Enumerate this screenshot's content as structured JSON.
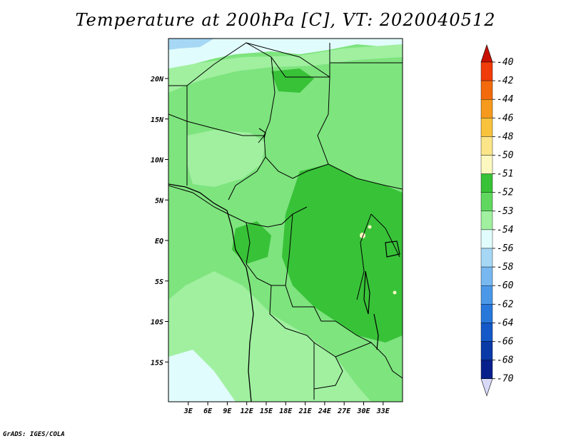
{
  "title": "Temperature at 200hPa [C], VT: 2020040512",
  "credit": "GrADS: IGES/COLA",
  "map": {
    "lat_ticks": [
      {
        "label": "20N",
        "lat": 20
      },
      {
        "label": "15N",
        "lat": 15
      },
      {
        "label": "10N",
        "lat": 10
      },
      {
        "label": "5N",
        "lat": 5
      },
      {
        "label": "EQ",
        "lat": 0
      },
      {
        "label": "5S",
        "lat": -5
      },
      {
        "label": "10S",
        "lat": -10
      },
      {
        "label": "15S",
        "lat": -15
      }
    ],
    "lon_ticks": [
      {
        "label": "3E",
        "lon": 3
      },
      {
        "label": "6E",
        "lon": 6
      },
      {
        "label": "9E",
        "lon": 9
      },
      {
        "label": "12E",
        "lon": 12
      },
      {
        "label": "15E",
        "lon": 15
      },
      {
        "label": "18E",
        "lon": 18
      },
      {
        "label": "21E",
        "lon": 21
      },
      {
        "label": "24E",
        "lon": 24
      },
      {
        "label": "27E",
        "lon": 27
      },
      {
        "label": "30E",
        "lon": 30
      },
      {
        "label": "33E",
        "lon": 33
      }
    ]
  },
  "colorbar": {
    "labels": [
      "-40",
      "-42",
      "-44",
      "-46",
      "-48",
      "-50",
      "-51",
      "-52",
      "-53",
      "-54",
      "-56",
      "-58",
      "-60",
      "-62",
      "-64",
      "-66",
      "-68",
      "-70"
    ],
    "colors": [
      "#e8000b",
      "#f03c0a",
      "#f36a0c",
      "#f59a1c",
      "#f8c23c",
      "#fbe588",
      "#fdf8c0",
      "#38c238",
      "#60d860",
      "#a0f0a0",
      "#e1fcfc",
      "#a6d8f5",
      "#78b8f0",
      "#4c98e8",
      "#2878dc",
      "#1558c8",
      "#0a3aa8",
      "#08208c",
      "#040a64"
    ],
    "top_arrow_color": "#c81000",
    "bottom_arrow_color": "#d8d8f8"
  }
}
